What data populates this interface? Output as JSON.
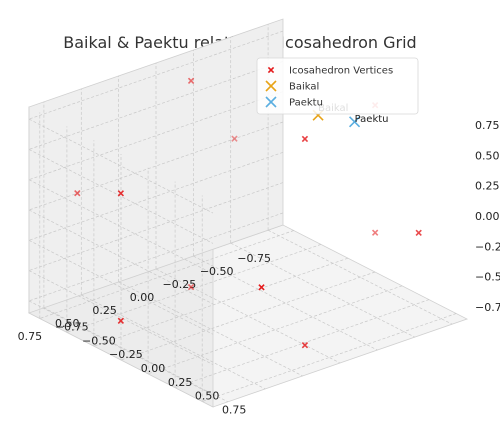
{
  "chart_data": {
    "type": "scatter",
    "projection": "3d",
    "title": "Baikal & Paektu relative to Icosahedron Grid",
    "xlim": [
      -0.85,
      0.85
    ],
    "ylim": [
      -0.85,
      0.85
    ],
    "zlim": [
      -0.85,
      0.85
    ],
    "x_ticks": [
      "−0.75",
      "−0.50",
      "−0.25",
      "0.00",
      "0.25",
      "0.50",
      "0.75"
    ],
    "y_ticks": [
      "−0.75",
      "−0.50",
      "−0.25",
      "0.00",
      "0.25",
      "0.50",
      "0.75"
    ],
    "z_ticks": [
      "−0.75",
      "−0.50",
      "−0.25",
      "0.00",
      "0.25",
      "0.50",
      "0.75"
    ],
    "grid": true,
    "legend_position": "top-right",
    "series": [
      {
        "name": "Icosahedron Vertices",
        "marker": "x",
        "color": "#e41a1c",
        "points": [
          {
            "x": 0.0,
            "y": 0.526,
            "z": 0.851
          },
          {
            "x": 0.0,
            "y": -0.526,
            "z": 0.851
          },
          {
            "x": 0.0,
            "y": 0.526,
            "z": -0.851
          },
          {
            "x": 0.0,
            "y": -0.526,
            "z": -0.851
          },
          {
            "x": 0.526,
            "y": 0.851,
            "z": 0.0
          },
          {
            "x": -0.526,
            "y": 0.851,
            "z": 0.0
          },
          {
            "x": 0.526,
            "y": -0.851,
            "z": 0.0
          },
          {
            "x": -0.526,
            "y": -0.851,
            "z": 0.0
          },
          {
            "x": 0.851,
            "y": 0.0,
            "z": 0.526
          },
          {
            "x": -0.851,
            "y": 0.0,
            "z": 0.526
          },
          {
            "x": 0.851,
            "y": 0.0,
            "z": -0.526
          },
          {
            "x": -0.851,
            "y": 0.0,
            "z": -0.526
          }
        ]
      },
      {
        "name": "Baikal",
        "marker": "x",
        "color": "#e8a317",
        "label": "Baikal",
        "points": [
          {
            "x": -0.23,
            "y": 0.33,
            "z": 0.86
          }
        ]
      },
      {
        "name": "Paektu",
        "marker": "x",
        "color": "#5aaee0",
        "label": "Paektu",
        "points": [
          {
            "x": -0.38,
            "y": 0.46,
            "z": 0.8
          }
        ]
      }
    ]
  }
}
